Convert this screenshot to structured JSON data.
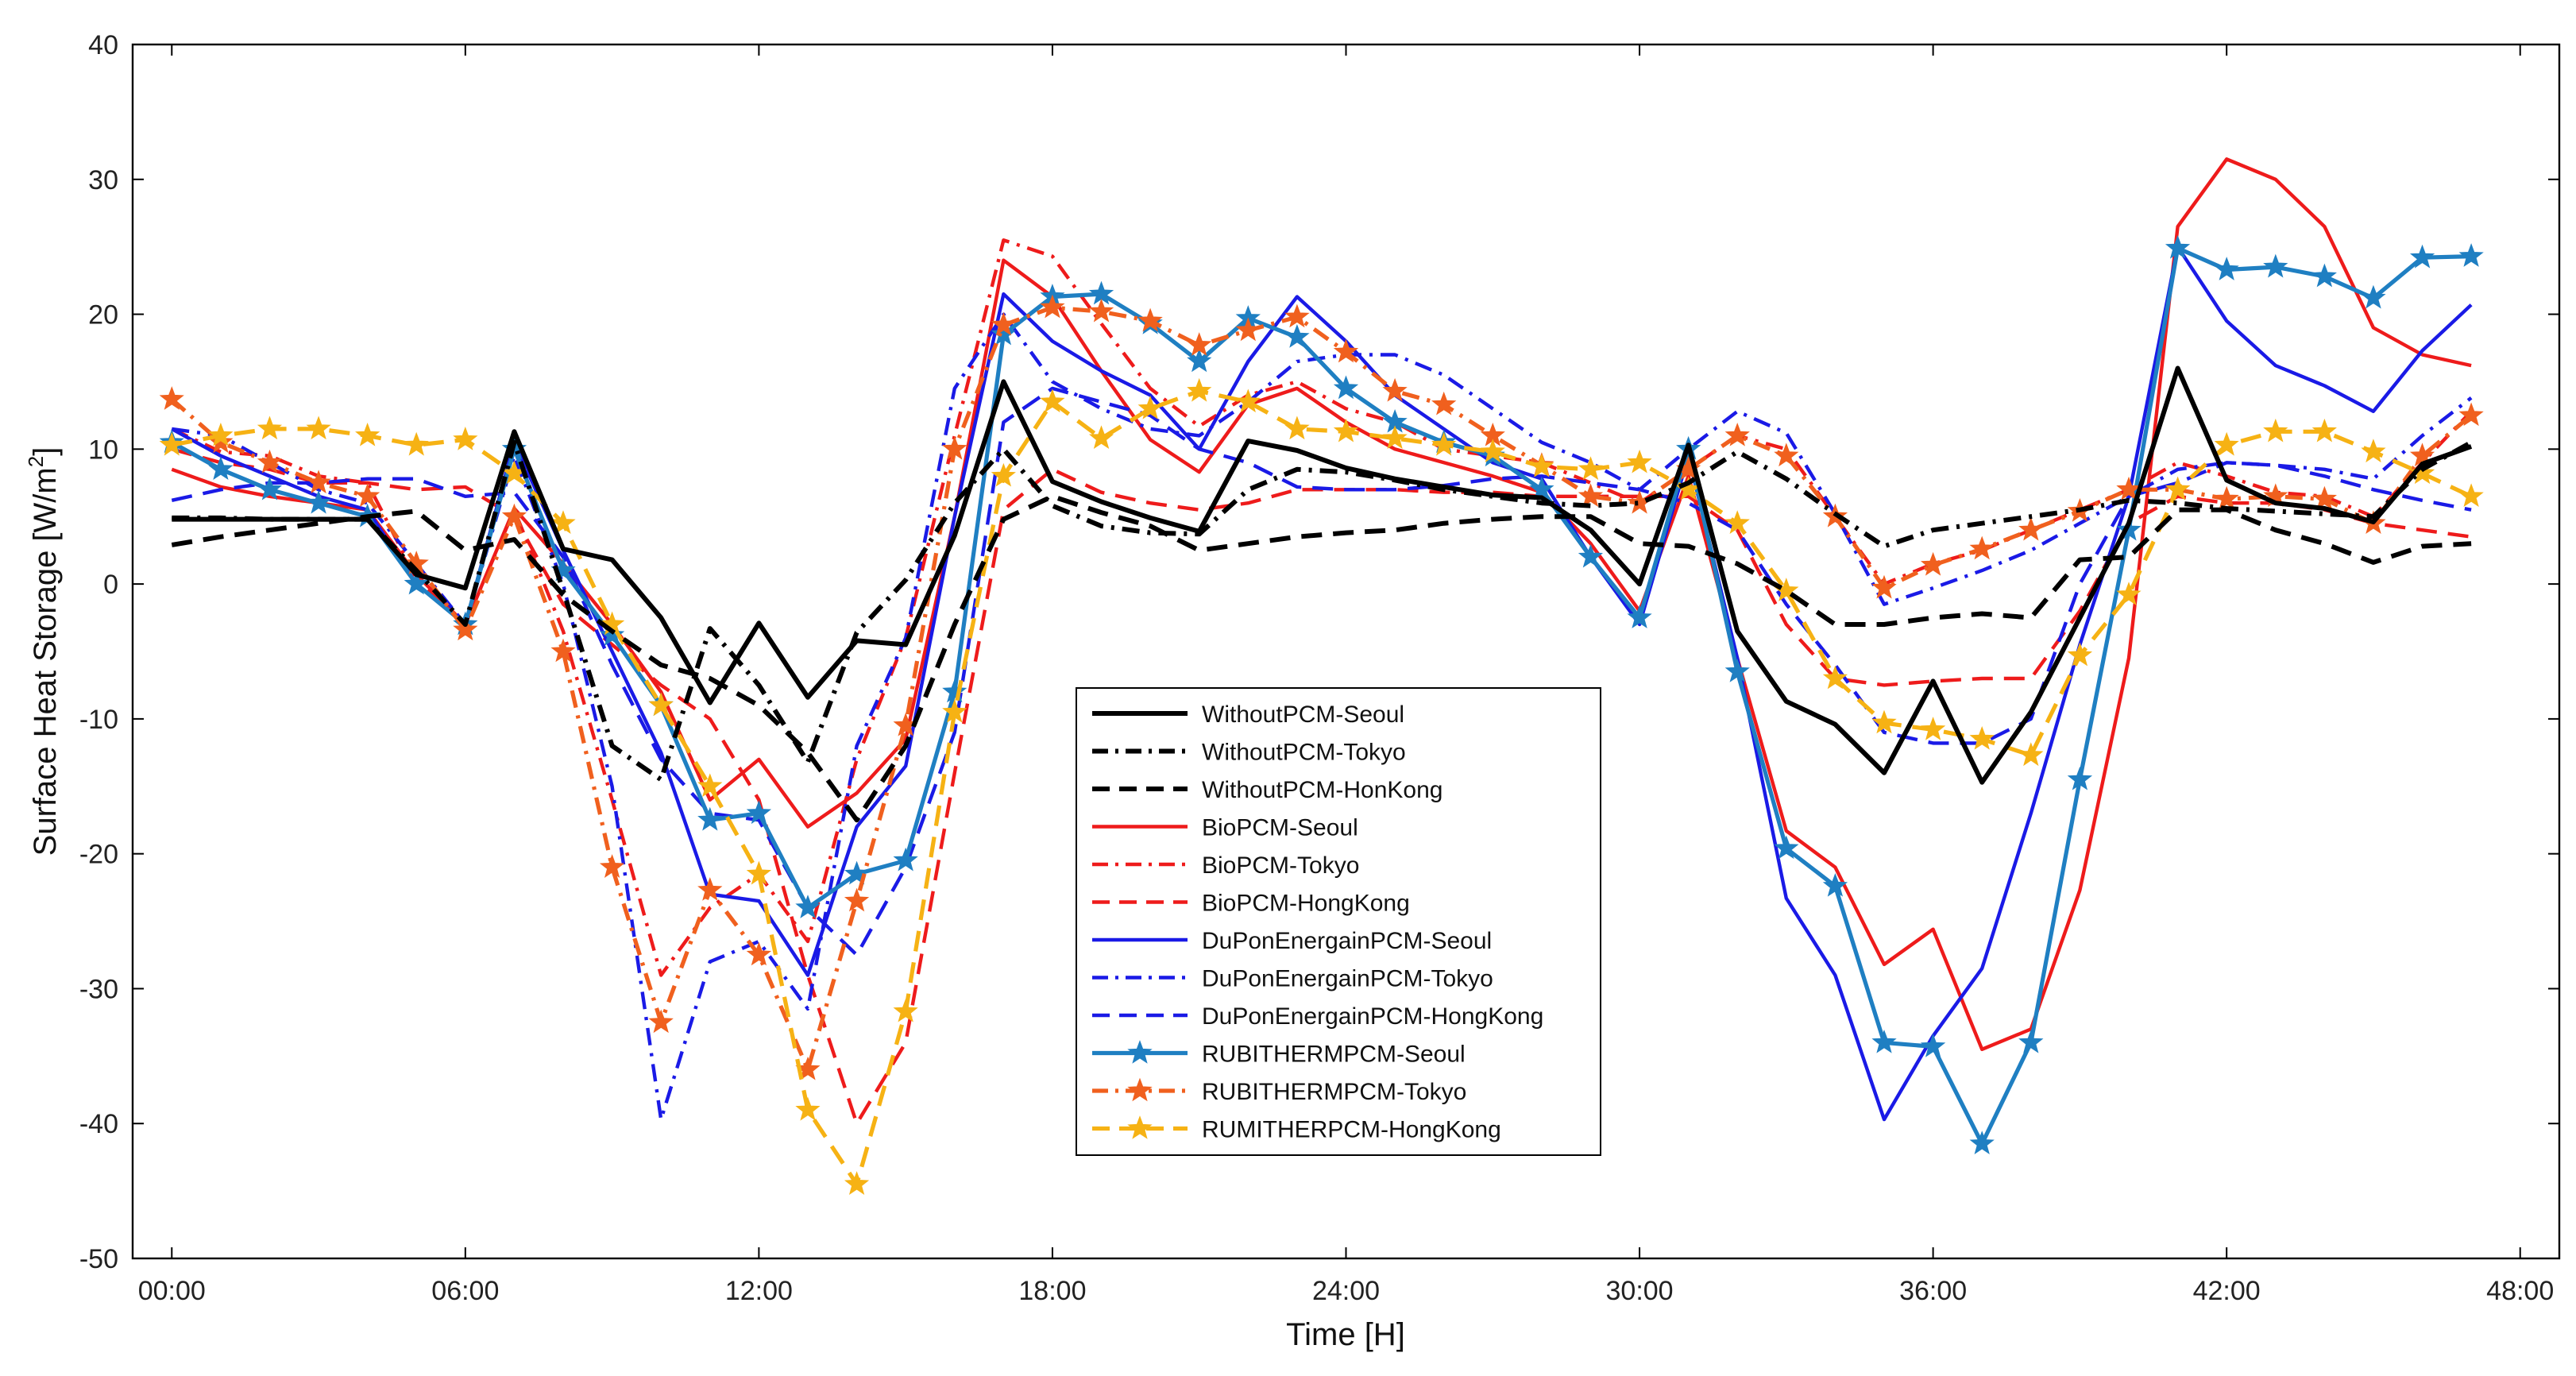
{
  "chart_data": {
    "type": "line",
    "xlabel": "Time [H]",
    "ylabel": "Surface Heat Storage [W/m",
    "ylabel_superscript": "2",
    "ylabel_suffix": "]",
    "xlim": [
      -0.8,
      48.8
    ],
    "ylim": [
      -50,
      40
    ],
    "xticks": [
      0,
      6,
      12,
      18,
      24,
      30,
      36,
      42,
      48
    ],
    "xtick_labels": [
      "00:00",
      "06:00",
      "12:00",
      "18:00",
      "24:00",
      "30:00",
      "36:00",
      "42:00",
      "48:00"
    ],
    "yticks": [
      -50,
      -40,
      -30,
      -20,
      -10,
      0,
      10,
      20,
      30,
      40
    ],
    "ytick_labels": [
      "-50",
      "-40",
      "-30",
      "-20",
      "-10",
      "0",
      "10",
      "20",
      "30",
      "40"
    ],
    "x": [
      0,
      1,
      2,
      3,
      4,
      5,
      6,
      7,
      8,
      9,
      10,
      11,
      12,
      13,
      14,
      15,
      16,
      17,
      18,
      19,
      20,
      21,
      22,
      23,
      24,
      25,
      26,
      27,
      28,
      29,
      30,
      31,
      32,
      33,
      34,
      35,
      36,
      37,
      38,
      39,
      40,
      41,
      42,
      43,
      44,
      45,
      46,
      47
    ],
    "legend_position": "center",
    "series": [
      {
        "name": "WithoutPCM-Seoul",
        "color": "#000000",
        "dash": "solid",
        "width": 3,
        "marker": "none",
        "values": [
          4.8,
          4.8,
          4.8,
          4.8,
          4.8,
          0.7,
          -0.3,
          11.3,
          2.6,
          1.8,
          -2.5,
          -8.8,
          -2.9,
          -8.4,
          -4.2,
          -4.5,
          3.6,
          15.0,
          7.6,
          6.1,
          4.9,
          3.9,
          10.6,
          9.9,
          8.6,
          7.8,
          7.2,
          6.6,
          6.4,
          4.0,
          0.0,
          10.3,
          -3.5,
          -8.7,
          -10.4,
          -14.0,
          -7.2,
          -14.7,
          -9.5,
          -2.5,
          4.5,
          16.0,
          7.7,
          6.0,
          5.6,
          4.6,
          8.9,
          10.2
        ]
      },
      {
        "name": "WithoutPCM-Tokyo",
        "color": "#000000",
        "dash": "dashdot",
        "width": 3,
        "marker": "none",
        "values": [
          4.9,
          4.9,
          4.8,
          4.8,
          4.8,
          1.0,
          -3.0,
          10.5,
          -0.5,
          -12.0,
          -14.5,
          -3.3,
          -7.5,
          -13.2,
          -3.6,
          0.3,
          6.0,
          10.0,
          5.8,
          4.3,
          3.8,
          3.7,
          7.0,
          8.5,
          8.3,
          7.7,
          7.0,
          6.5,
          6.0,
          5.8,
          6.0,
          7.5,
          9.8,
          7.8,
          5.2,
          2.8,
          4.0,
          4.5,
          5.0,
          5.5,
          6.2,
          6.0,
          5.6,
          5.4,
          5.2,
          5.0,
          8.5,
          10.5
        ]
      },
      {
        "name": "WithoutPCM-HonKong",
        "color": "#000000",
        "dash": "dashed",
        "width": 3,
        "marker": "none",
        "values": [
          2.9,
          3.5,
          4.0,
          4.5,
          5.0,
          5.4,
          2.5,
          3.3,
          -0.8,
          -3.5,
          -6.0,
          -7.0,
          -9.0,
          -12.5,
          -17.5,
          -12.0,
          -3.0,
          4.8,
          6.5,
          5.3,
          4.3,
          2.5,
          3.0,
          3.5,
          3.8,
          4.0,
          4.5,
          4.8,
          5.0,
          5.0,
          3.0,
          2.8,
          1.5,
          -0.5,
          -3.0,
          -3.0,
          -2.5,
          -2.2,
          -2.5,
          1.8,
          2.0,
          5.5,
          5.5,
          4.0,
          3.0,
          1.6,
          2.8,
          3.0
        ]
      },
      {
        "name": "BioPCM-Seoul",
        "color": "#ee1b1b",
        "dash": "solid",
        "width": 2.2,
        "marker": "none",
        "values": [
          8.5,
          7.2,
          6.5,
          6.0,
          5.5,
          0.7,
          -3.0,
          5.6,
          1.5,
          -3.0,
          -8.0,
          -16.0,
          -13.0,
          -18.0,
          -15.5,
          -11.5,
          5.0,
          24.0,
          21.3,
          15.8,
          10.7,
          8.3,
          13.3,
          14.5,
          12.0,
          10.0,
          9.0,
          8.0,
          6.8,
          3.0,
          -2.0,
          8.0,
          -5.5,
          -18.3,
          -21.0,
          -28.2,
          -25.6,
          -34.5,
          -33.0,
          -22.7,
          -5.5,
          26.5,
          31.5,
          30.0,
          26.5,
          19.0,
          17.0,
          16.2
        ]
      },
      {
        "name": "BioPCM-Tokyo",
        "color": "#ee1b1b",
        "dash": "dashdot",
        "width": 2.2,
        "marker": "none",
        "values": [
          11.5,
          9.8,
          9.5,
          8.0,
          7.5,
          0.4,
          -3.0,
          5.5,
          -3.5,
          -16.0,
          -29.0,
          -24.0,
          -21.5,
          -26.5,
          -13.0,
          -4.0,
          11.0,
          25.5,
          24.3,
          19.3,
          14.5,
          11.7,
          14.0,
          15.0,
          13.0,
          12.0,
          10.0,
          9.5,
          9.0,
          7.5,
          6.0,
          8.5,
          11.0,
          10.0,
          5.0,
          0.0,
          1.5,
          2.5,
          4.0,
          5.5,
          7.0,
          9.0,
          8.0,
          6.8,
          6.5,
          5.0,
          9.0,
          12.8
        ]
      },
      {
        "name": "BioPCM-HongKong",
        "color": "#ee1b1b",
        "dash": "dashed",
        "width": 2.2,
        "marker": "none",
        "values": [
          10.0,
          9.0,
          8.5,
          7.5,
          7.5,
          7.0,
          7.2,
          5.0,
          -1.5,
          -4.5,
          -7.5,
          -10.0,
          -16.0,
          -29.0,
          -40.0,
          -34.0,
          -14.0,
          5.5,
          8.5,
          6.8,
          6.0,
          5.5,
          6.0,
          7.0,
          7.0,
          7.0,
          6.8,
          6.8,
          6.5,
          6.5,
          6.5,
          6.5,
          4.0,
          -3.0,
          -7.0,
          -7.5,
          -7.2,
          -7.0,
          -7.0,
          -2.0,
          4.5,
          6.5,
          6.0,
          6.0,
          5.5,
          4.5,
          4.0,
          3.5
        ]
      },
      {
        "name": "DuPonEnergainPCM-Seoul",
        "color": "#1a1ae6",
        "dash": "solid",
        "width": 2.2,
        "marker": "none",
        "values": [
          11.5,
          9.5,
          8.0,
          6.5,
          5.5,
          0.0,
          -3.0,
          10.5,
          2.5,
          -5.0,
          -12.5,
          -23.0,
          -23.5,
          -29.0,
          -18.0,
          -13.5,
          5.0,
          21.5,
          18.0,
          15.8,
          14.0,
          10.0,
          16.5,
          21.3,
          18.0,
          14.0,
          11.5,
          9.0,
          7.8,
          2.0,
          -3.0,
          9.5,
          -5.5,
          -23.3,
          -29.0,
          -39.7,
          -33.5,
          -28.5,
          -17.0,
          -4.5,
          6.5,
          25.0,
          19.5,
          16.2,
          14.7,
          12.8,
          17.3,
          20.7
        ]
      },
      {
        "name": "DuPonEnergainPCM-Tokyo",
        "color": "#1a1ae6",
        "dash": "dashdot",
        "width": 2.2,
        "marker": "none",
        "values": [
          11.5,
          11.0,
          9.0,
          7.0,
          6.0,
          1.5,
          -3.0,
          9.5,
          0.0,
          -15.0,
          -39.7,
          -28.0,
          -26.5,
          -31.5,
          -12.0,
          -4.0,
          14.5,
          20.0,
          15.0,
          13.0,
          11.5,
          11.0,
          13.5,
          16.5,
          17.0,
          17.0,
          15.5,
          13.0,
          10.5,
          9.0,
          7.0,
          10.0,
          12.8,
          11.2,
          5.2,
          -1.5,
          -0.3,
          1.0,
          2.5,
          4.5,
          6.5,
          8.5,
          9.0,
          8.8,
          8.5,
          7.8,
          11.0,
          13.8
        ]
      },
      {
        "name": "DuPonEnergainPCM-HongKong",
        "color": "#1a1ae6",
        "dash": "dashed",
        "width": 2.2,
        "marker": "none",
        "values": [
          6.2,
          7.0,
          7.5,
          7.5,
          7.8,
          7.8,
          6.5,
          6.8,
          2.0,
          -6.0,
          -13.0,
          -17.0,
          -17.5,
          -24.0,
          -27.5,
          -21.0,
          -11.0,
          12.0,
          14.5,
          13.5,
          12.5,
          10.0,
          9.0,
          7.2,
          7.0,
          7.0,
          7.3,
          7.8,
          8.0,
          7.5,
          7.0,
          6.0,
          4.0,
          -1.5,
          -6.0,
          -11.0,
          -11.8,
          -11.8,
          -10.0,
          0.0,
          6.5,
          7.5,
          9.0,
          8.8,
          8.0,
          7.0,
          6.2,
          5.5
        ]
      },
      {
        "name": "RUBITHERMPCM-Seoul",
        "color": "#1f7fc2",
        "dash": "solid",
        "width": 2.6,
        "marker": "star",
        "values": [
          10.5,
          8.5,
          7.0,
          6.0,
          5.0,
          0.0,
          -3.0,
          10.0,
          1.0,
          -3.8,
          -9.0,
          -17.5,
          -17.0,
          -24.0,
          -21.5,
          -20.5,
          -8.0,
          18.5,
          21.3,
          21.5,
          19.3,
          16.5,
          19.7,
          18.3,
          14.5,
          12.0,
          10.5,
          9.5,
          7.0,
          2.0,
          -2.5,
          10.0,
          -6.5,
          -19.6,
          -22.4,
          -34.0,
          -34.3,
          -41.5,
          -34.0,
          -14.5,
          4.0,
          24.9,
          23.3,
          23.5,
          22.8,
          21.2,
          24.2,
          24.3
        ]
      },
      {
        "name": "RUBITHERMPCM-Tokyo",
        "color": "#f0601e",
        "dash": "dashdot",
        "width": 2.6,
        "marker": "star",
        "values": [
          13.7,
          10.5,
          9.0,
          7.5,
          6.5,
          1.5,
          -3.4,
          5.0,
          -5.0,
          -21.0,
          -32.5,
          -22.7,
          -27.5,
          -36.0,
          -23.5,
          -10.5,
          10.0,
          19.2,
          20.5,
          20.2,
          19.5,
          17.7,
          18.8,
          19.8,
          17.2,
          14.3,
          13.3,
          11.0,
          8.8,
          6.5,
          6.0,
          8.5,
          11.0,
          9.5,
          5.0,
          -0.3,
          1.4,
          2.6,
          4.0,
          5.4,
          7.0,
          7.0,
          6.3,
          6.5,
          6.3,
          4.5,
          9.5,
          12.5
        ]
      },
      {
        "name": "RUMITHERPCM-HongKong",
        "color": "#f6b214",
        "dash": "dashed",
        "width": 2.6,
        "marker": "star",
        "values": [
          10.3,
          11.0,
          11.5,
          11.5,
          11.0,
          10.3,
          10.7,
          8.2,
          4.5,
          -3.0,
          -9.0,
          -15.0,
          -21.5,
          -39.0,
          -44.5,
          -31.7,
          -9.5,
          8.0,
          13.5,
          10.8,
          13.0,
          14.3,
          13.5,
          11.5,
          11.3,
          10.8,
          10.3,
          9.8,
          8.7,
          8.5,
          9.0,
          7.0,
          4.5,
          -0.5,
          -7.0,
          -10.3,
          -10.8,
          -11.5,
          -12.7,
          -5.3,
          -0.8,
          7.0,
          10.3,
          11.3,
          11.3,
          9.8,
          8.2,
          6.5
        ]
      }
    ]
  }
}
